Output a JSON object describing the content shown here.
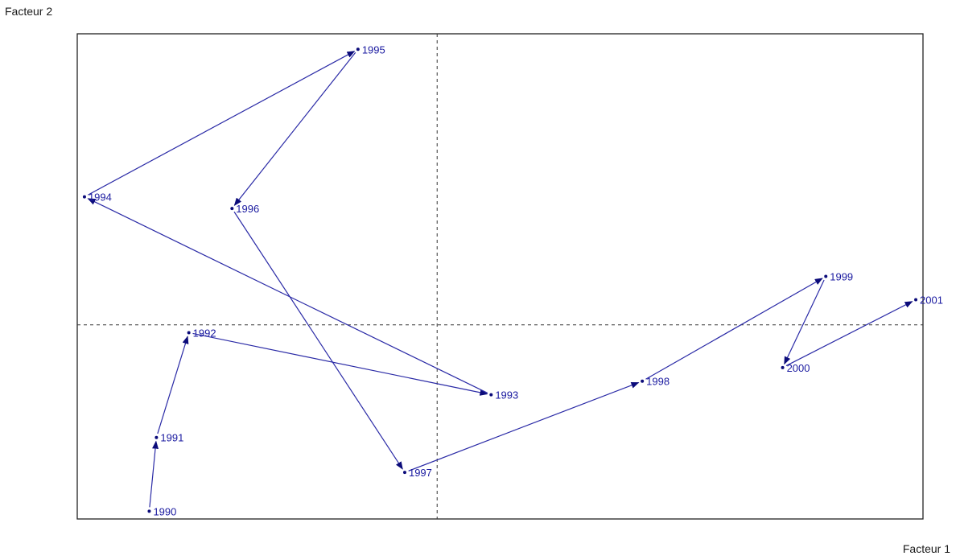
{
  "chart_data": {
    "type": "scatter",
    "title": "",
    "xlabel": "Facteur 1",
    "ylabel": "Facteur 2",
    "xlim": [
      -1.0,
      1.35
    ],
    "ylim": [
      -1.0,
      1.5
    ],
    "connected": true,
    "arrows": true,
    "grid": false,
    "origin_lines": "dashed",
    "legend": "none",
    "series": [
      {
        "points": [
          {
            "label": "1990",
            "x": -0.8,
            "y": -0.96
          },
          {
            "label": "1991",
            "x": -0.78,
            "y": -0.58
          },
          {
            "label": "1992",
            "x": -0.69,
            "y": -0.04
          },
          {
            "label": "1993",
            "x": 0.15,
            "y": -0.36
          },
          {
            "label": "1994",
            "x": -0.98,
            "y": 0.66
          },
          {
            "label": "1995",
            "x": -0.22,
            "y": 1.42
          },
          {
            "label": "1996",
            "x": -0.57,
            "y": 0.6
          },
          {
            "label": "1997",
            "x": -0.09,
            "y": -0.76
          },
          {
            "label": "1998",
            "x": 0.57,
            "y": -0.29
          },
          {
            "label": "1999",
            "x": 1.08,
            "y": 0.25
          },
          {
            "label": "2000",
            "x": 0.96,
            "y": -0.22
          },
          {
            "label": "2001",
            "x": 1.33,
            "y": 0.13
          }
        ]
      }
    ]
  },
  "colors": {
    "series": "#2a2aa6",
    "arrow": "#0c0c7a",
    "frame": "#222222",
    "origin_line": "#333333"
  }
}
